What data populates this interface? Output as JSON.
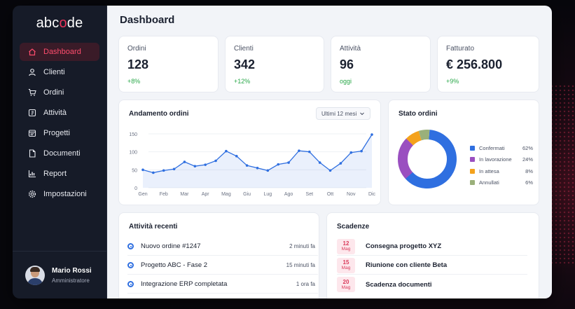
{
  "brand": {
    "logo_pre": "abc",
    "logo_o": "o",
    "logo_post": "de"
  },
  "sidebar": {
    "items": [
      {
        "label": "Dashboard",
        "icon": "home-icon"
      },
      {
        "label": "Clienti",
        "icon": "user-icon"
      },
      {
        "label": "Ordini",
        "icon": "cart-icon"
      },
      {
        "label": "Attività",
        "icon": "activity-icon"
      },
      {
        "label": "Progetti",
        "icon": "projects-icon"
      },
      {
        "label": "Documenti",
        "icon": "document-icon"
      },
      {
        "label": "Report",
        "icon": "report-icon"
      },
      {
        "label": "Impostazioni",
        "icon": "gear-icon"
      }
    ],
    "active_index": 0
  },
  "user": {
    "name": "Mario Rossi",
    "role": "Amministratore"
  },
  "page": {
    "title": "Dashboard"
  },
  "stats": [
    {
      "label": "Ordini",
      "value": "128",
      "change": "+8%"
    },
    {
      "label": "Clienti",
      "value": "342",
      "change": "+12%"
    },
    {
      "label": "Attività",
      "value": "96",
      "change": "oggi"
    },
    {
      "label": "Fatturato",
      "value": "€ 256.800",
      "change": "+9%"
    }
  ],
  "orders_chart": {
    "title": "Andamento ordini",
    "period": "Ultimi 12 mesi"
  },
  "status_chart": {
    "title": "Stato ordini"
  },
  "chart_data": [
    {
      "type": "area",
      "title": "Andamento ordini",
      "categories": [
        "Gen",
        "Feb",
        "Mar",
        "Apr",
        "Mag",
        "Giu",
        "Lug",
        "Ago",
        "Set",
        "Ott",
        "Nov",
        "Dic"
      ],
      "x": [
        "Gen",
        "",
        "Feb",
        "",
        "Mar",
        "",
        "Apr",
        "",
        "Mag",
        "",
        "Giu",
        "",
        "Lug",
        "",
        "Ago",
        "",
        "Set",
        "",
        "Ott",
        "",
        "Nov",
        "",
        "Dic"
      ],
      "values": [
        50,
        42,
        48,
        52,
        72,
        60,
        64,
        75,
        102,
        88,
        62,
        55,
        48,
        65,
        70,
        103,
        100,
        70,
        48,
        68,
        98,
        102,
        148
      ],
      "yticks": [
        0,
        50,
        100,
        150
      ],
      "ylim": [
        0,
        150
      ],
      "grid": true,
      "color": "#2f6fe0"
    },
    {
      "type": "pie",
      "title": "Stato ordini",
      "labels": [
        "Confermati",
        "In lavorazione",
        "In attesa",
        "Annullati"
      ],
      "values": [
        62,
        24,
        8,
        6
      ],
      "value_labels": [
        "62%",
        "24%",
        "8%",
        "6%"
      ],
      "colors": [
        "#2f6fe0",
        "#9a4fc0",
        "#f4a21c",
        "#9ab07a"
      ],
      "legend": "right"
    }
  ],
  "activities": {
    "title": "Attività recenti",
    "items": [
      {
        "text": "Nuovo ordine #1247",
        "time": "2 minuti fa"
      },
      {
        "text": "Progetto ABC - Fase 2",
        "time": "15 minuti fa"
      },
      {
        "text": "Integrazione ERP completata",
        "time": "1 ora fa"
      }
    ]
  },
  "deadlines": {
    "title": "Scadenze",
    "items": [
      {
        "day": "12",
        "month": "Mag",
        "text": "Consegna progetto XYZ"
      },
      {
        "day": "15",
        "month": "Mag",
        "text": "Riunione con cliente Beta"
      },
      {
        "day": "20",
        "month": "Mag",
        "text": "Scadenza documenti"
      }
    ]
  }
}
